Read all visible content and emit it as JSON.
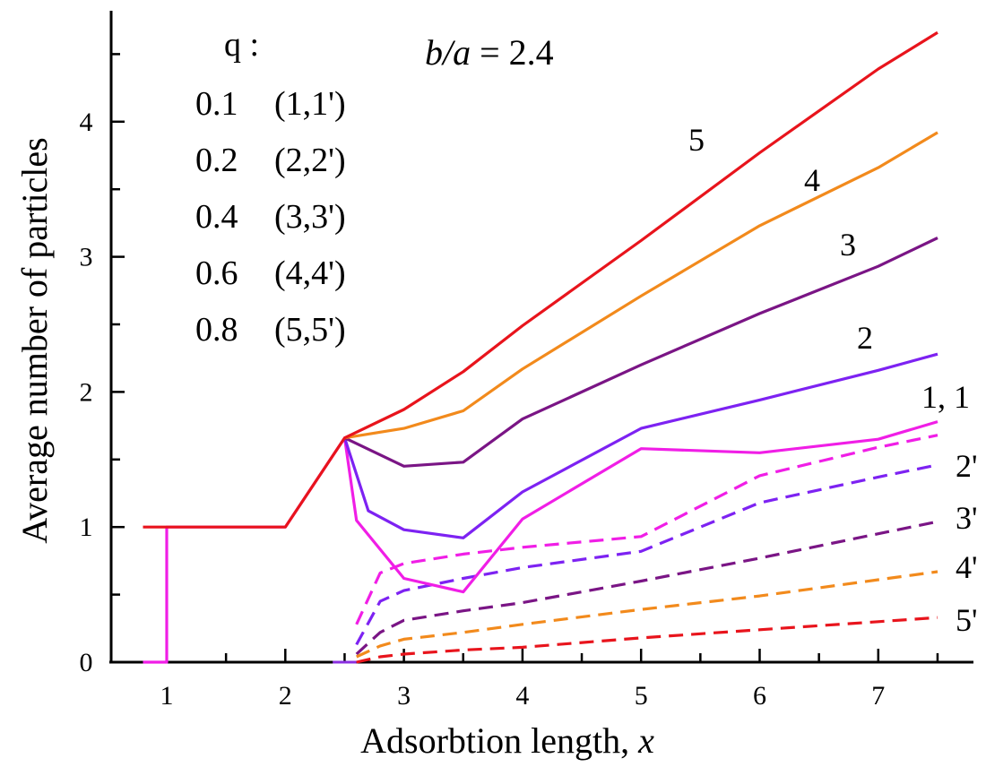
{
  "chart_data": {
    "type": "line",
    "title": "",
    "annotation": {
      "italic_part": "b/a",
      "rest": " = 2.4"
    },
    "xlabel": {
      "text": "Adsorbtion length,",
      "var": "x"
    },
    "ylabel": "Average number of particles",
    "xlim": [
      0.5,
      8.0
    ],
    "ylim": [
      0,
      4.8
    ],
    "xticks": [
      1,
      2,
      3,
      4,
      5,
      6,
      7
    ],
    "yticks": [
      0,
      1,
      2,
      3,
      4
    ],
    "legend": {
      "header": "q :",
      "entries": [
        {
          "q": "0.1",
          "curves": "(1,1')"
        },
        {
          "q": "0.2",
          "curves": "(2,2')"
        },
        {
          "q": "0.4",
          "curves": "(3,3')"
        },
        {
          "q": "0.6",
          "curves": "(4,4')"
        },
        {
          "q": "0.8",
          "curves": "(5,5')"
        }
      ]
    },
    "series": [
      {
        "name": "5",
        "color": "#e8141c",
        "style": "solid",
        "points": [
          [
            0.8,
            1
          ],
          [
            1,
            1
          ],
          [
            2,
            1
          ],
          [
            2.5,
            1.66
          ],
          [
            3,
            1.87
          ],
          [
            3.5,
            2.15
          ],
          [
            4,
            2.49
          ],
          [
            5,
            3.12
          ],
          [
            6,
            3.77
          ],
          [
            7,
            4.39
          ],
          [
            7.5,
            4.66
          ]
        ]
      },
      {
        "name": "4",
        "color": "#f28a1c",
        "style": "solid",
        "points": [
          [
            2.5,
            1.66
          ],
          [
            3,
            1.73
          ],
          [
            3.5,
            1.86
          ],
          [
            4,
            2.17
          ],
          [
            5,
            2.71
          ],
          [
            6,
            3.23
          ],
          [
            7,
            3.66
          ],
          [
            7.5,
            3.92
          ]
        ]
      },
      {
        "name": "3",
        "color": "#7a1585",
        "style": "solid",
        "points": [
          [
            2.5,
            1.66
          ],
          [
            3,
            1.45
          ],
          [
            3.5,
            1.48
          ],
          [
            4,
            1.8
          ],
          [
            5,
            2.2
          ],
          [
            6,
            2.58
          ],
          [
            7,
            2.93
          ],
          [
            7.5,
            3.14
          ]
        ]
      },
      {
        "name": "2",
        "color": "#7d22f2",
        "style": "solid",
        "points": [
          [
            2.5,
            1.66
          ],
          [
            2.7,
            1.12
          ],
          [
            3,
            0.98
          ],
          [
            3.5,
            0.92
          ],
          [
            4,
            1.26
          ],
          [
            5,
            1.73
          ],
          [
            6,
            1.94
          ],
          [
            7,
            2.16
          ],
          [
            7.5,
            2.28
          ]
        ]
      },
      {
        "name": "1",
        "color": "#f01ee6",
        "style": "solid",
        "points": [
          [
            0.8,
            0
          ],
          [
            1,
            0
          ],
          [
            1,
            1
          ],
          [
            2,
            1
          ],
          [
            2.5,
            1.66
          ],
          [
            2.6,
            1.05
          ],
          [
            3,
            0.62
          ],
          [
            3.5,
            0.52
          ],
          [
            4,
            1.06
          ],
          [
            5,
            1.58
          ],
          [
            6,
            1.55
          ],
          [
            7,
            1.65
          ],
          [
            7.5,
            1.78
          ]
        ]
      },
      {
        "name": "1'",
        "color": "#f01ee6",
        "style": "dashed",
        "points": [
          [
            2.6,
            0.28
          ],
          [
            2.8,
            0.66
          ],
          [
            3,
            0.73
          ],
          [
            3.5,
            0.8
          ],
          [
            4,
            0.85
          ],
          [
            5,
            0.93
          ],
          [
            6,
            1.38
          ],
          [
            7,
            1.59
          ],
          [
            7.5,
            1.68
          ]
        ]
      },
      {
        "name": "2'",
        "color": "#7d22f2",
        "style": "dashed",
        "points": [
          [
            2.6,
            0.13
          ],
          [
            2.8,
            0.45
          ],
          [
            3,
            0.53
          ],
          [
            3.5,
            0.62
          ],
          [
            4,
            0.7
          ],
          [
            5,
            0.82
          ],
          [
            6,
            1.18
          ],
          [
            7,
            1.37
          ],
          [
            7.5,
            1.46
          ]
        ]
      },
      {
        "name": "3'",
        "color": "#7a1585",
        "style": "dashed",
        "points": [
          [
            2.6,
            0.06
          ],
          [
            2.8,
            0.22
          ],
          [
            3,
            0.31
          ],
          [
            3.5,
            0.38
          ],
          [
            4,
            0.44
          ],
          [
            5,
            0.6
          ],
          [
            6,
            0.77
          ],
          [
            7,
            0.95
          ],
          [
            7.5,
            1.04
          ]
        ]
      },
      {
        "name": "4'",
        "color": "#f28a1c",
        "style": "dashed",
        "points": [
          [
            2.6,
            0.04
          ],
          [
            2.8,
            0.12
          ],
          [
            3,
            0.17
          ],
          [
            3.5,
            0.22
          ],
          [
            4,
            0.28
          ],
          [
            5,
            0.39
          ],
          [
            6,
            0.49
          ],
          [
            7,
            0.61
          ],
          [
            7.5,
            0.67
          ]
        ]
      },
      {
        "name": "5'",
        "color": "#e8141c",
        "style": "dashed",
        "points": [
          [
            2.6,
            0.0
          ],
          [
            2.8,
            0.04
          ],
          [
            3,
            0.06
          ],
          [
            3.5,
            0.09
          ],
          [
            4,
            0.11
          ],
          [
            5,
            0.18
          ],
          [
            6,
            0.24
          ],
          [
            7,
            0.3
          ],
          [
            7.5,
            0.33
          ]
        ]
      }
    ],
    "pre_transition": {
      "color": "#8a2fe0",
      "points": [
        [
          2.4,
          0
        ],
        [
          2.6,
          0
        ]
      ]
    },
    "curve_labels": [
      {
        "text": "5"
      },
      {
        "text": "4"
      },
      {
        "text": "3"
      },
      {
        "text": "2"
      },
      {
        "text": "1, 1"
      },
      {
        "text": "2'"
      },
      {
        "text": "3'"
      },
      {
        "text": "4'"
      },
      {
        "text": "5'"
      }
    ]
  }
}
